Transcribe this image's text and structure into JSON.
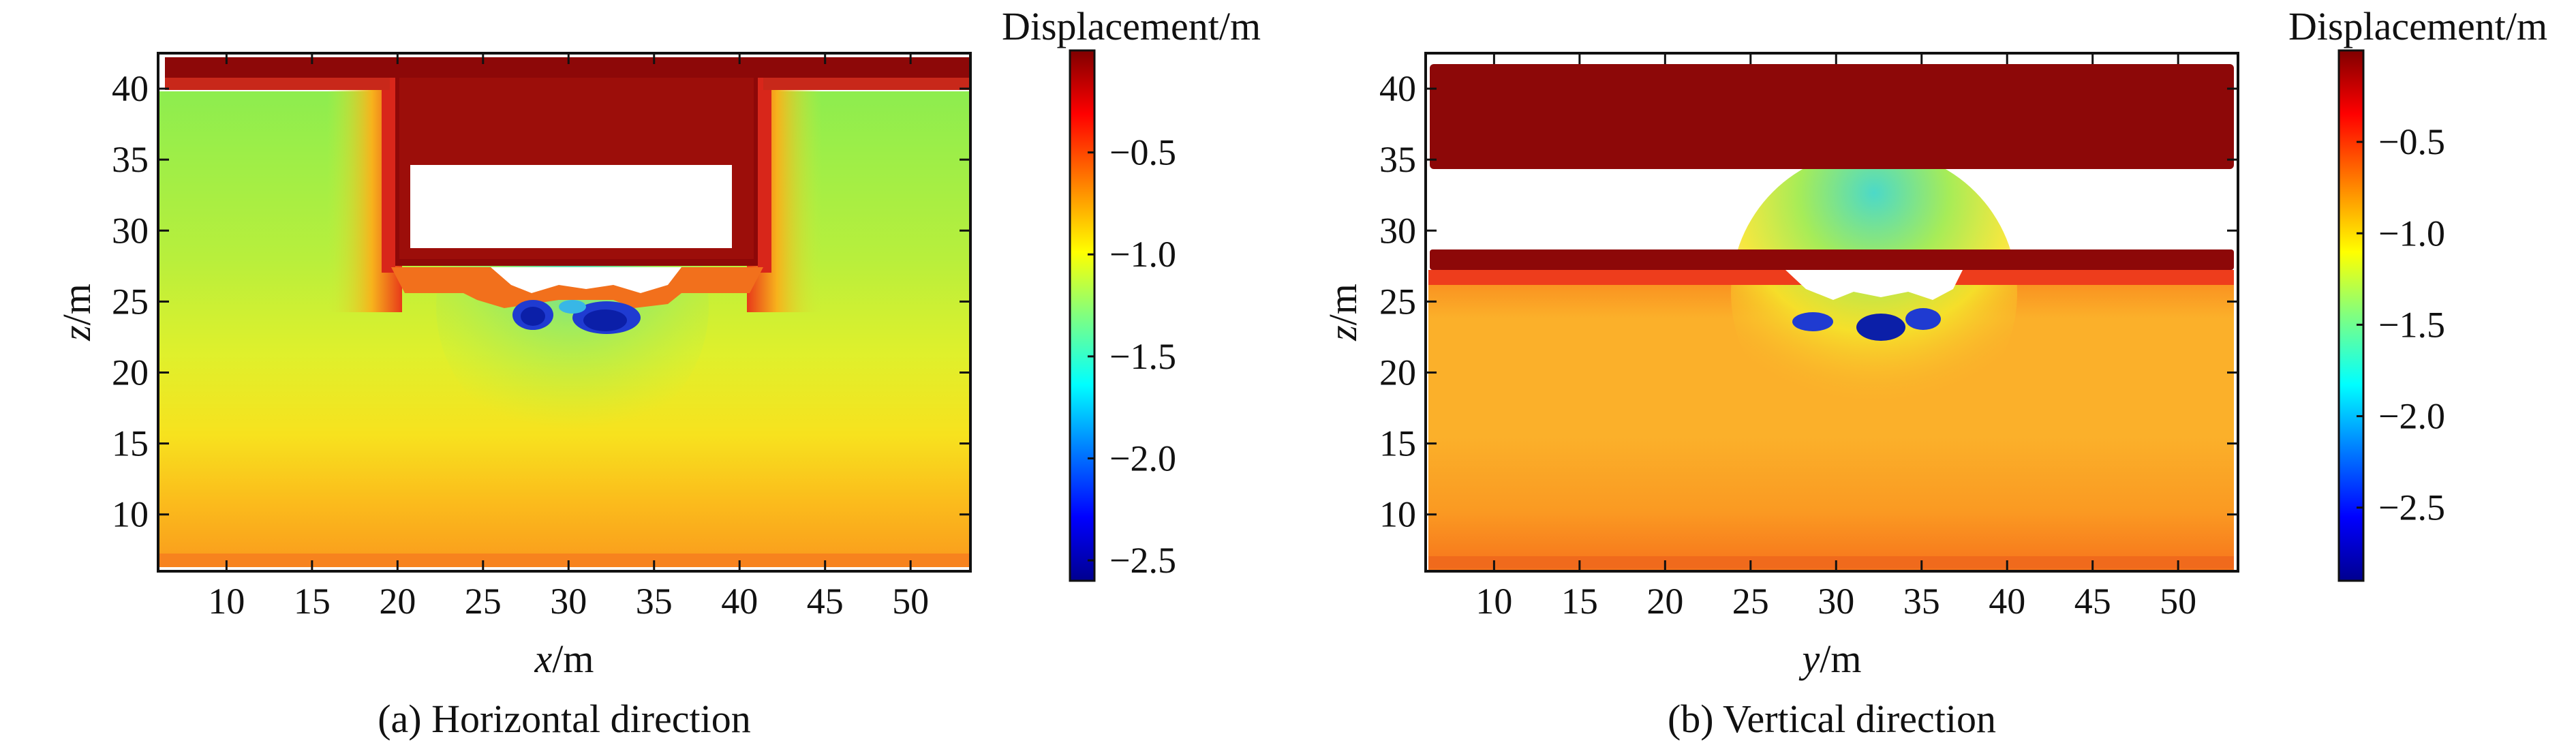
{
  "figure": {
    "panels": [
      {
        "caption": "(a) Horizontal direction",
        "xlabel_var": "x",
        "xlabel_unit": "/m",
        "ylabel_var": "z",
        "ylabel_unit": "/m",
        "colorbar_label": "Displacement/m"
      },
      {
        "caption": "(b) Vertical direction",
        "xlabel_var": "y",
        "xlabel_unit": "/m",
        "ylabel_var": "z",
        "ylabel_unit": "/m",
        "colorbar_label": "Displacement/m"
      }
    ]
  },
  "chart_data": [
    {
      "type": "heatmap",
      "title": "",
      "caption": "(a) Horizontal direction",
      "xlabel": "x/m",
      "ylabel": "z/m",
      "xlim": [
        6,
        53.5
      ],
      "ylim": [
        6,
        42.5
      ],
      "xticks": [
        10,
        15,
        20,
        25,
        30,
        35,
        40,
        45,
        50
      ],
      "xtick_labels": [
        "10",
        "15",
        "20",
        "25",
        "30",
        "35",
        "40",
        "45",
        "50"
      ],
      "yticks": [
        10,
        15,
        20,
        25,
        30,
        35,
        40
      ],
      "ytick_labels": [
        "10",
        "15",
        "20",
        "25",
        "30",
        "35",
        "40"
      ],
      "colorbar": {
        "label": "Displacement/m",
        "range": [
          -2.6,
          0
        ],
        "ticks": [
          -0.5,
          -1.0,
          -1.5,
          -2.0,
          -2.5
        ],
        "tick_labels": [
          "−0.5",
          "−1.0",
          "−1.5",
          "−2.0",
          "−2.5"
        ],
        "colormap": [
          "#00008f",
          "#0000ff",
          "#0080ff",
          "#00ffff",
          "#80ff80",
          "#ffff00",
          "#ff8000",
          "#ff0000",
          "#800000"
        ]
      },
      "fields": {
        "surface_slab": {
          "x": [
            6,
            53.5
          ],
          "z": [
            40,
            41.2
          ],
          "value": 0
        },
        "cover_soil_left": {
          "x": [
            6,
            18.5
          ],
          "z": [
            26,
            39
          ],
          "value": -1.3
        },
        "cover_soil_right": {
          "x": [
            40.5,
            53.5
          ],
          "z": [
            26,
            39
          ],
          "value": -1.3
        },
        "structure": {
          "x": [
            18.5,
            40.5
          ],
          "z": [
            26.8,
            40
          ],
          "value": -0.05
        },
        "opening": {
          "x": [
            21,
            38.5
          ],
          "z": [
            28.5,
            34
          ],
          "value": null
        },
        "soil_base": {
          "x": [
            6,
            53.5
          ],
          "z": [
            6.5,
            11
          ],
          "value": -0.75
        },
        "settlement_trough_center": {
          "x": 30,
          "z": 23.5,
          "value": -2.5
        },
        "deep_soil_value": -1.1
      }
    },
    {
      "type": "heatmap",
      "title": "",
      "caption": "(b) Vertical direction",
      "xlabel": "y/m",
      "ylabel": "z/m",
      "xlim": [
        6,
        53.5
      ],
      "ylim": [
        6,
        42.5
      ],
      "xticks": [
        10,
        15,
        20,
        25,
        30,
        35,
        40,
        45,
        50
      ],
      "xtick_labels": [
        "10",
        "15",
        "20",
        "25",
        "30",
        "35",
        "40",
        "45",
        "50"
      ],
      "yticks": [
        10,
        15,
        20,
        25,
        30,
        35,
        40
      ],
      "ytick_labels": [
        "10",
        "15",
        "20",
        "25",
        "30",
        "35",
        "40"
      ],
      "colorbar": {
        "label": "Displacement/m",
        "range": [
          -2.9,
          0
        ],
        "ticks": [
          -0.5,
          -1.0,
          -1.5,
          -2.0,
          -2.5
        ],
        "tick_labels": [
          "−0.5",
          "−1.0",
          "−1.5",
          "−2.0",
          "−2.5"
        ],
        "colormap": [
          "#00008f",
          "#0000ff",
          "#0080ff",
          "#00ffff",
          "#80ff80",
          "#ffff00",
          "#ff8000",
          "#ff0000",
          "#800000"
        ]
      },
      "fields": {
        "roof_slab": {
          "x": [
            6,
            53
          ],
          "z": [
            34,
            41
          ],
          "value": 0
        },
        "floor_slab": {
          "x": [
            6,
            53
          ],
          "z": [
            26.5,
            28
          ],
          "value": -0.05
        },
        "soil": {
          "x": [
            6,
            53
          ],
          "z": [
            6.5,
            26.5
          ],
          "value": -0.75
        },
        "settlement_trough_center": {
          "x": 32,
          "z": 23.5,
          "value": -2.5
        }
      }
    }
  ]
}
